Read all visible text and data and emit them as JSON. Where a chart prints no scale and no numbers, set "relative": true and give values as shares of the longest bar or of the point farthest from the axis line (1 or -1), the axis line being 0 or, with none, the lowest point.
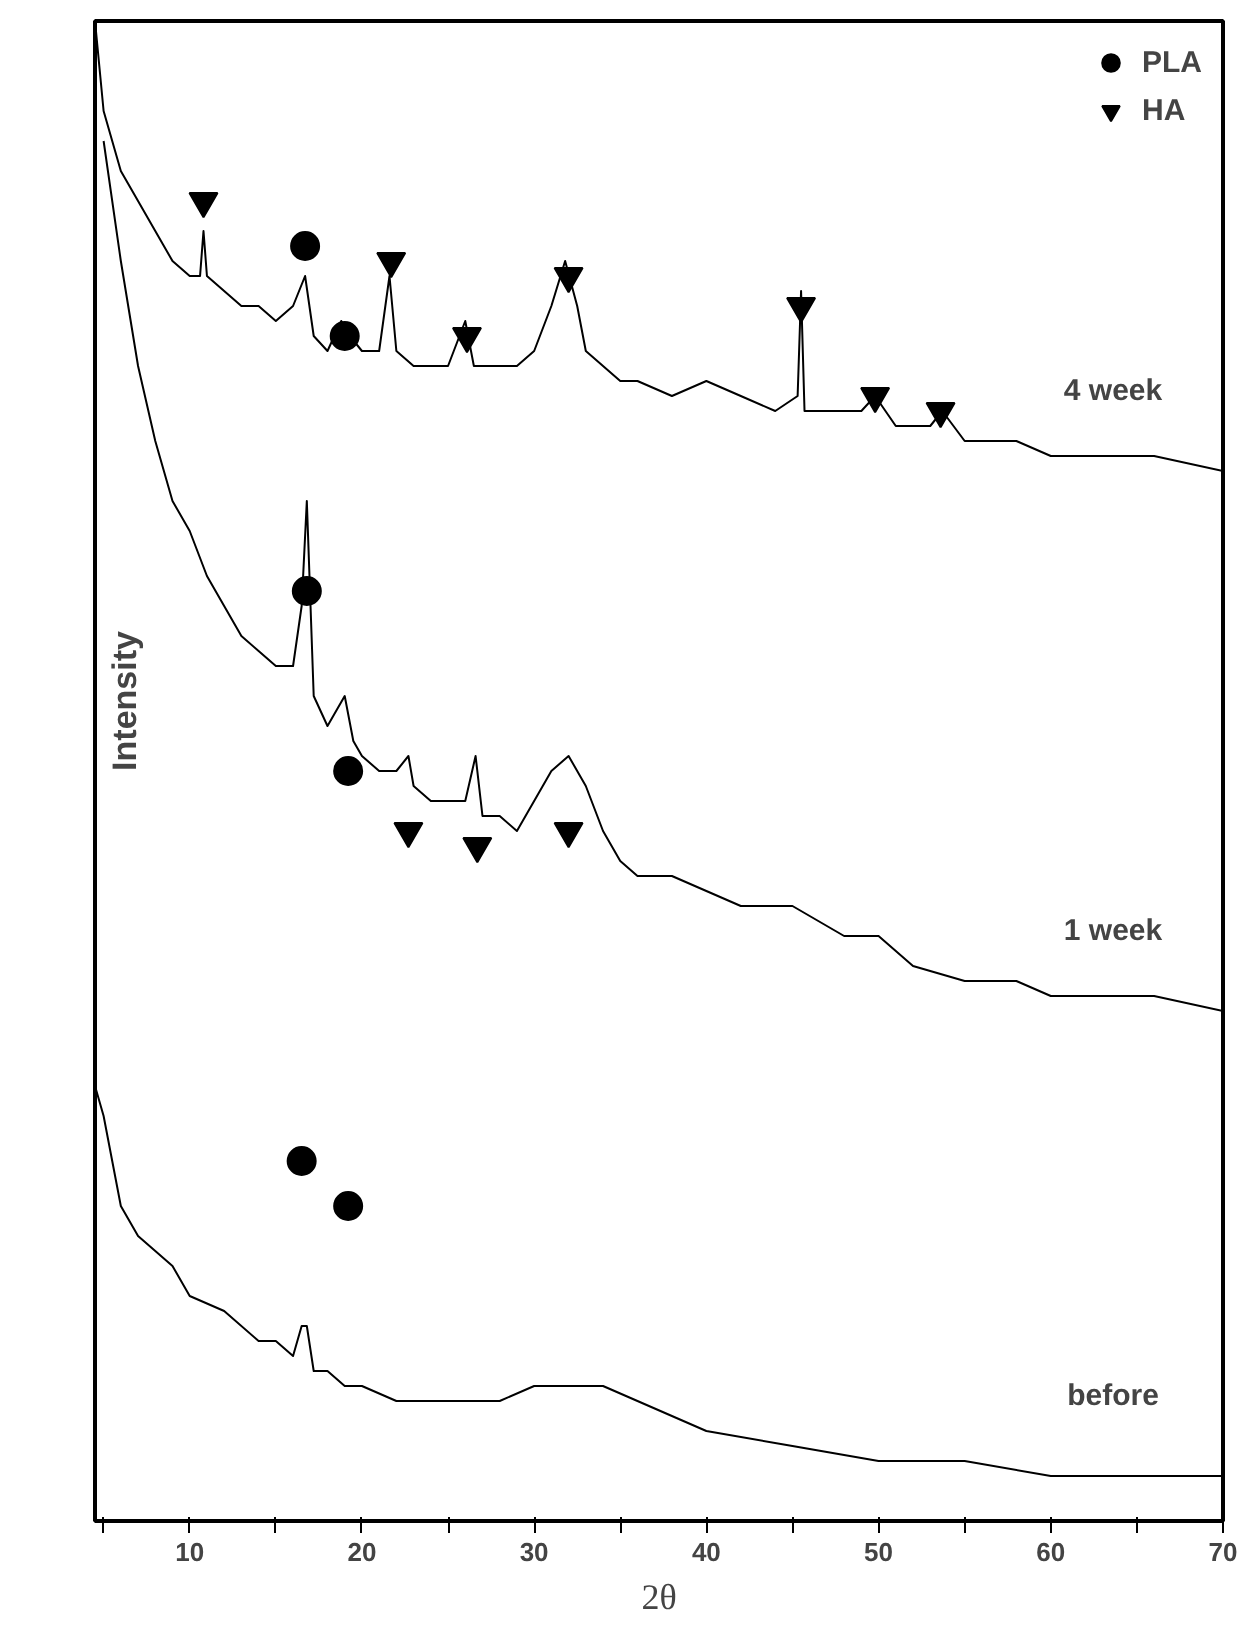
{
  "chart_data": {
    "type": "line",
    "relative": true,
    "xlabel": "2θ",
    "ylabel": "Intensity",
    "xlim": [
      4.5,
      70
    ],
    "xticks": [
      {
        "value": 5,
        "label": null
      },
      10,
      {
        "value": 15,
        "label": null
      },
      20,
      {
        "value": 25,
        "label": null
      },
      30,
      {
        "value": 35,
        "label": null
      },
      40,
      {
        "value": 45,
        "label": null
      },
      50,
      {
        "value": 55,
        "label": null
      },
      60,
      {
        "value": 65,
        "label": null
      },
      70
    ],
    "grid": false,
    "legend": "top right",
    "line_style": "solid",
    "tick_labels": "x",
    "series": [
      {
        "color": "#000000",
        "x": [
          4.5,
          5,
          6,
          7,
          8,
          9,
          10,
          10.6,
          10.8,
          11,
          12,
          13,
          14,
          15,
          16,
          16.7,
          17.2,
          18,
          18.8,
          19.3,
          20,
          21,
          21.6,
          22,
          23,
          24,
          25,
          26,
          26.5,
          27,
          28,
          29,
          30,
          31,
          31.8,
          32.5,
          33,
          34,
          35,
          36,
          38,
          40,
          42,
          44,
          45.3,
          45.5,
          45.7,
          47,
          49,
          49.8,
          51,
          53,
          53.7,
          55,
          58,
          60,
          63,
          66,
          70
        ],
        "values": [
          1.0,
          0.94,
          0.9,
          0.88,
          0.86,
          0.84,
          0.83,
          0.83,
          0.86,
          0.83,
          0.82,
          0.81,
          0.81,
          0.8,
          0.81,
          0.83,
          0.79,
          0.78,
          0.8,
          0.79,
          0.78,
          0.78,
          0.83,
          0.78,
          0.77,
          0.77,
          0.77,
          0.8,
          0.77,
          0.77,
          0.77,
          0.77,
          0.78,
          0.81,
          0.84,
          0.81,
          0.78,
          0.77,
          0.76,
          0.76,
          0.75,
          0.76,
          0.75,
          0.74,
          0.75,
          0.82,
          0.74,
          0.74,
          0.74,
          0.75,
          0.73,
          0.73,
          0.74,
          0.72,
          0.72,
          0.71,
          0.71,
          0.71,
          0.7
        ]
      },
      {
        "color": "#000000",
        "x": [
          5,
          6,
          7,
          8,
          9,
          10,
          11,
          12,
          13,
          14,
          15,
          16,
          16.5,
          16.8,
          17.2,
          18,
          19,
          19.5,
          20,
          21,
          22,
          22.7,
          23,
          24,
          25,
          26,
          26.6,
          27,
          28,
          29,
          30,
          31,
          32,
          33,
          34,
          35,
          36,
          38,
          40,
          42,
          45,
          48,
          50,
          52,
          55,
          58,
          60,
          63,
          66,
          70
        ],
        "values": [
          0.92,
          0.84,
          0.77,
          0.72,
          0.68,
          0.66,
          0.63,
          0.61,
          0.59,
          0.58,
          0.57,
          0.57,
          0.61,
          0.68,
          0.55,
          0.53,
          0.55,
          0.52,
          0.51,
          0.5,
          0.5,
          0.51,
          0.49,
          0.48,
          0.48,
          0.48,
          0.51,
          0.47,
          0.47,
          0.46,
          0.48,
          0.5,
          0.51,
          0.49,
          0.46,
          0.44,
          0.43,
          0.43,
          0.42,
          0.41,
          0.41,
          0.39,
          0.39,
          0.37,
          0.36,
          0.36,
          0.35,
          0.35,
          0.35,
          0.34
        ]
      },
      {
        "color": "#000000",
        "x": [
          4.5,
          5,
          6,
          7,
          8,
          9,
          10,
          12,
          14,
          15,
          16,
          16.5,
          16.8,
          17.2,
          18,
          19,
          20,
          22,
          24,
          26,
          28,
          30,
          32,
          34,
          36,
          40,
          45,
          50,
          55,
          60,
          65,
          70
        ],
        "values": [
          0.29,
          0.27,
          0.21,
          0.19,
          0.18,
          0.17,
          0.15,
          0.14,
          0.12,
          0.12,
          0.11,
          0.13,
          0.13,
          0.1,
          0.1,
          0.09,
          0.09,
          0.08,
          0.08,
          0.08,
          0.08,
          0.09,
          0.09,
          0.09,
          0.08,
          0.06,
          0.05,
          0.04,
          0.04,
          0.03,
          0.03,
          0.03
        ]
      },
      {
        "type": "scatter",
        "name": "PLA",
        "color": "#000000",
        "marker": "circle",
        "x": [
          16.7,
          19,
          16.8,
          19.2,
          16.5,
          19.2
        ],
        "values": [
          0.85,
          0.79,
          0.62,
          0.5,
          0.24,
          0.21
        ]
      },
      {
        "type": "scatter",
        "name": "HA",
        "color": "#000000",
        "marker": "triangle",
        "x": [
          10.8,
          21.7,
          26.1,
          32,
          45.5,
          49.8,
          53.6,
          22.7,
          26.7,
          32
        ],
        "values": [
          0.88,
          0.84,
          0.79,
          0.83,
          0.81,
          0.75,
          0.74,
          0.46,
          0.45,
          0.46
        ]
      }
    ],
    "annotations": [
      "4 week",
      "1 week",
      "before"
    ]
  }
}
